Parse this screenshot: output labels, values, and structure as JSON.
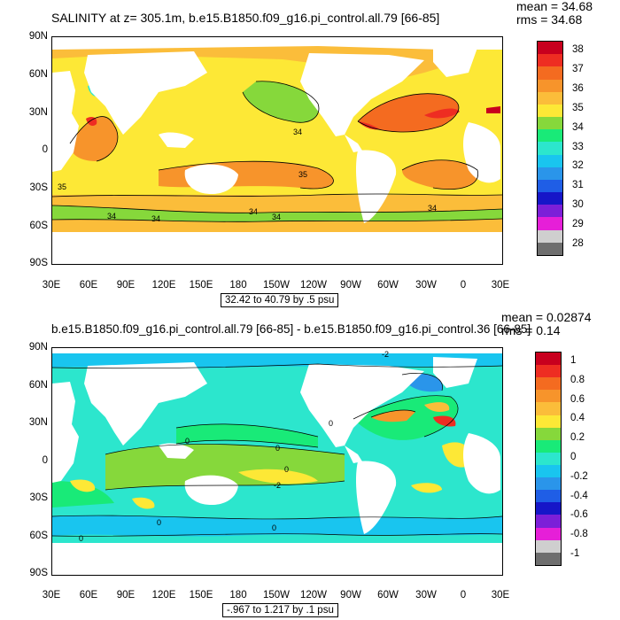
{
  "top": {
    "title": "SALINITY at z= 305.1m, b.e15.B1850.f09_g16.pi_control.all.79 [66-85]",
    "mean": "mean = 34.68",
    "rms": "rms = 34.68",
    "range_label": "32.42 to 40.79 by .5 psu",
    "contour_labels": [
      "34",
      "35",
      "34",
      "34",
      "34",
      "34",
      "35",
      "34"
    ],
    "colorbar_labels": [
      "38",
      "37",
      "36",
      "35",
      "34",
      "33",
      "32",
      "31",
      "30",
      "29",
      "28"
    ],
    "colorbar_colors": [
      "#c8001e",
      "#ee2d22",
      "#f46b20",
      "#f7942b",
      "#fbbd3a",
      "#fde836",
      "#86d83b",
      "#19ea78",
      "#2ce6cd",
      "#19c5ef",
      "#2a95ea",
      "#1f5ee6",
      "#1616c8",
      "#7c1fd8",
      "#e61fd8",
      "#cfcfcf",
      "#6e6e6e"
    ]
  },
  "bottom": {
    "title": "b.e15.B1850.f09_g16.pi_control.all.79 [66-85] - b.e15.B1850.f09_g16.pi_control.36 [66-85]",
    "mean": "mean = 0.02874",
    "rms": "rms = 0.14",
    "range_label": "-.967 to 1.217 by .1 psu",
    "contour_labels": [
      "-2",
      "0",
      "0",
      "0",
      "0",
      "-2",
      "0",
      "0",
      "0"
    ],
    "colorbar_labels": [
      "1",
      "0.8",
      "0.6",
      "0.4",
      "0.2",
      "0",
      "-0.2",
      "-0.4",
      "-0.6",
      "-0.8",
      "-1"
    ],
    "colorbar_colors": [
      "#c8001e",
      "#ee2d22",
      "#f46b20",
      "#f7942b",
      "#fbbd3a",
      "#fde836",
      "#86d83b",
      "#19ea78",
      "#2ce6cd",
      "#19c5ef",
      "#2a95ea",
      "#1f5ee6",
      "#1616c8",
      "#7c1fd8",
      "#e61fd8",
      "#cfcfcf",
      "#6e6e6e"
    ]
  },
  "axes": {
    "y_ticks": [
      "90N",
      "60N",
      "30N",
      "0",
      "30S",
      "60S",
      "90S"
    ],
    "x_ticks": [
      "30E",
      "60E",
      "90E",
      "120E",
      "150E",
      "180",
      "150W",
      "120W",
      "90W",
      "60W",
      "30W",
      "0",
      "30E"
    ]
  }
}
